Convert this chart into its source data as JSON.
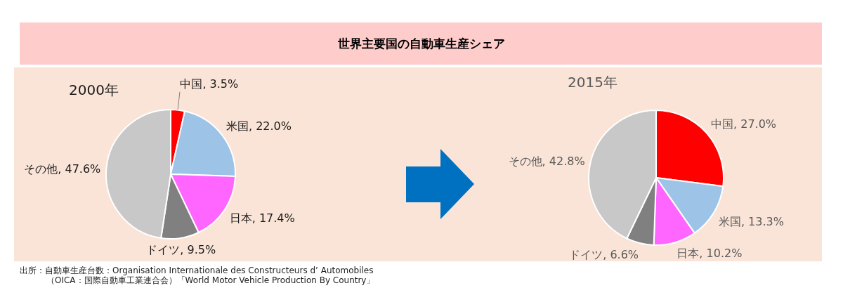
{
  "chart_data": [
    {
      "type": "pie",
      "title": "世界主要国の自動車生産シェア",
      "subtitle": "2000年",
      "categories": [
        "中国",
        "米国",
        "日本",
        "ドイツ",
        "その他"
      ],
      "values": [
        3.5,
        22.0,
        17.4,
        9.5,
        47.6
      ],
      "colors": [
        "#ff0000",
        "#9dc3e6",
        "#ff66ff",
        "#808080",
        "#c8c8c8"
      ],
      "value_labels": [
        "3.5%",
        "22.0%",
        "17.4%",
        "9.5%",
        "47.6%"
      ],
      "annotations": [
        "出所：自動車生産台数：Organisation Internationale des Constructeurs d’ Automobiles",
        "（OICA：国際自動車工業連合会）「World Motor Vehicle Production By Country」"
      ]
    },
    {
      "type": "pie",
      "title": "2015年",
      "categories": [
        "中国",
        "米国",
        "日本",
        "ドイツ",
        "その他"
      ],
      "values": [
        27.0,
        13.3,
        10.2,
        6.6,
        42.8
      ],
      "colors": [
        "#ff0000",
        "#9dc3e6",
        "#ff66ff",
        "#808080",
        "#c8c8c8"
      ],
      "value_labels": [
        "27.0%",
        "13.3%",
        "10.2%",
        "6.6%",
        "42.8%"
      ]
    }
  ]
}
